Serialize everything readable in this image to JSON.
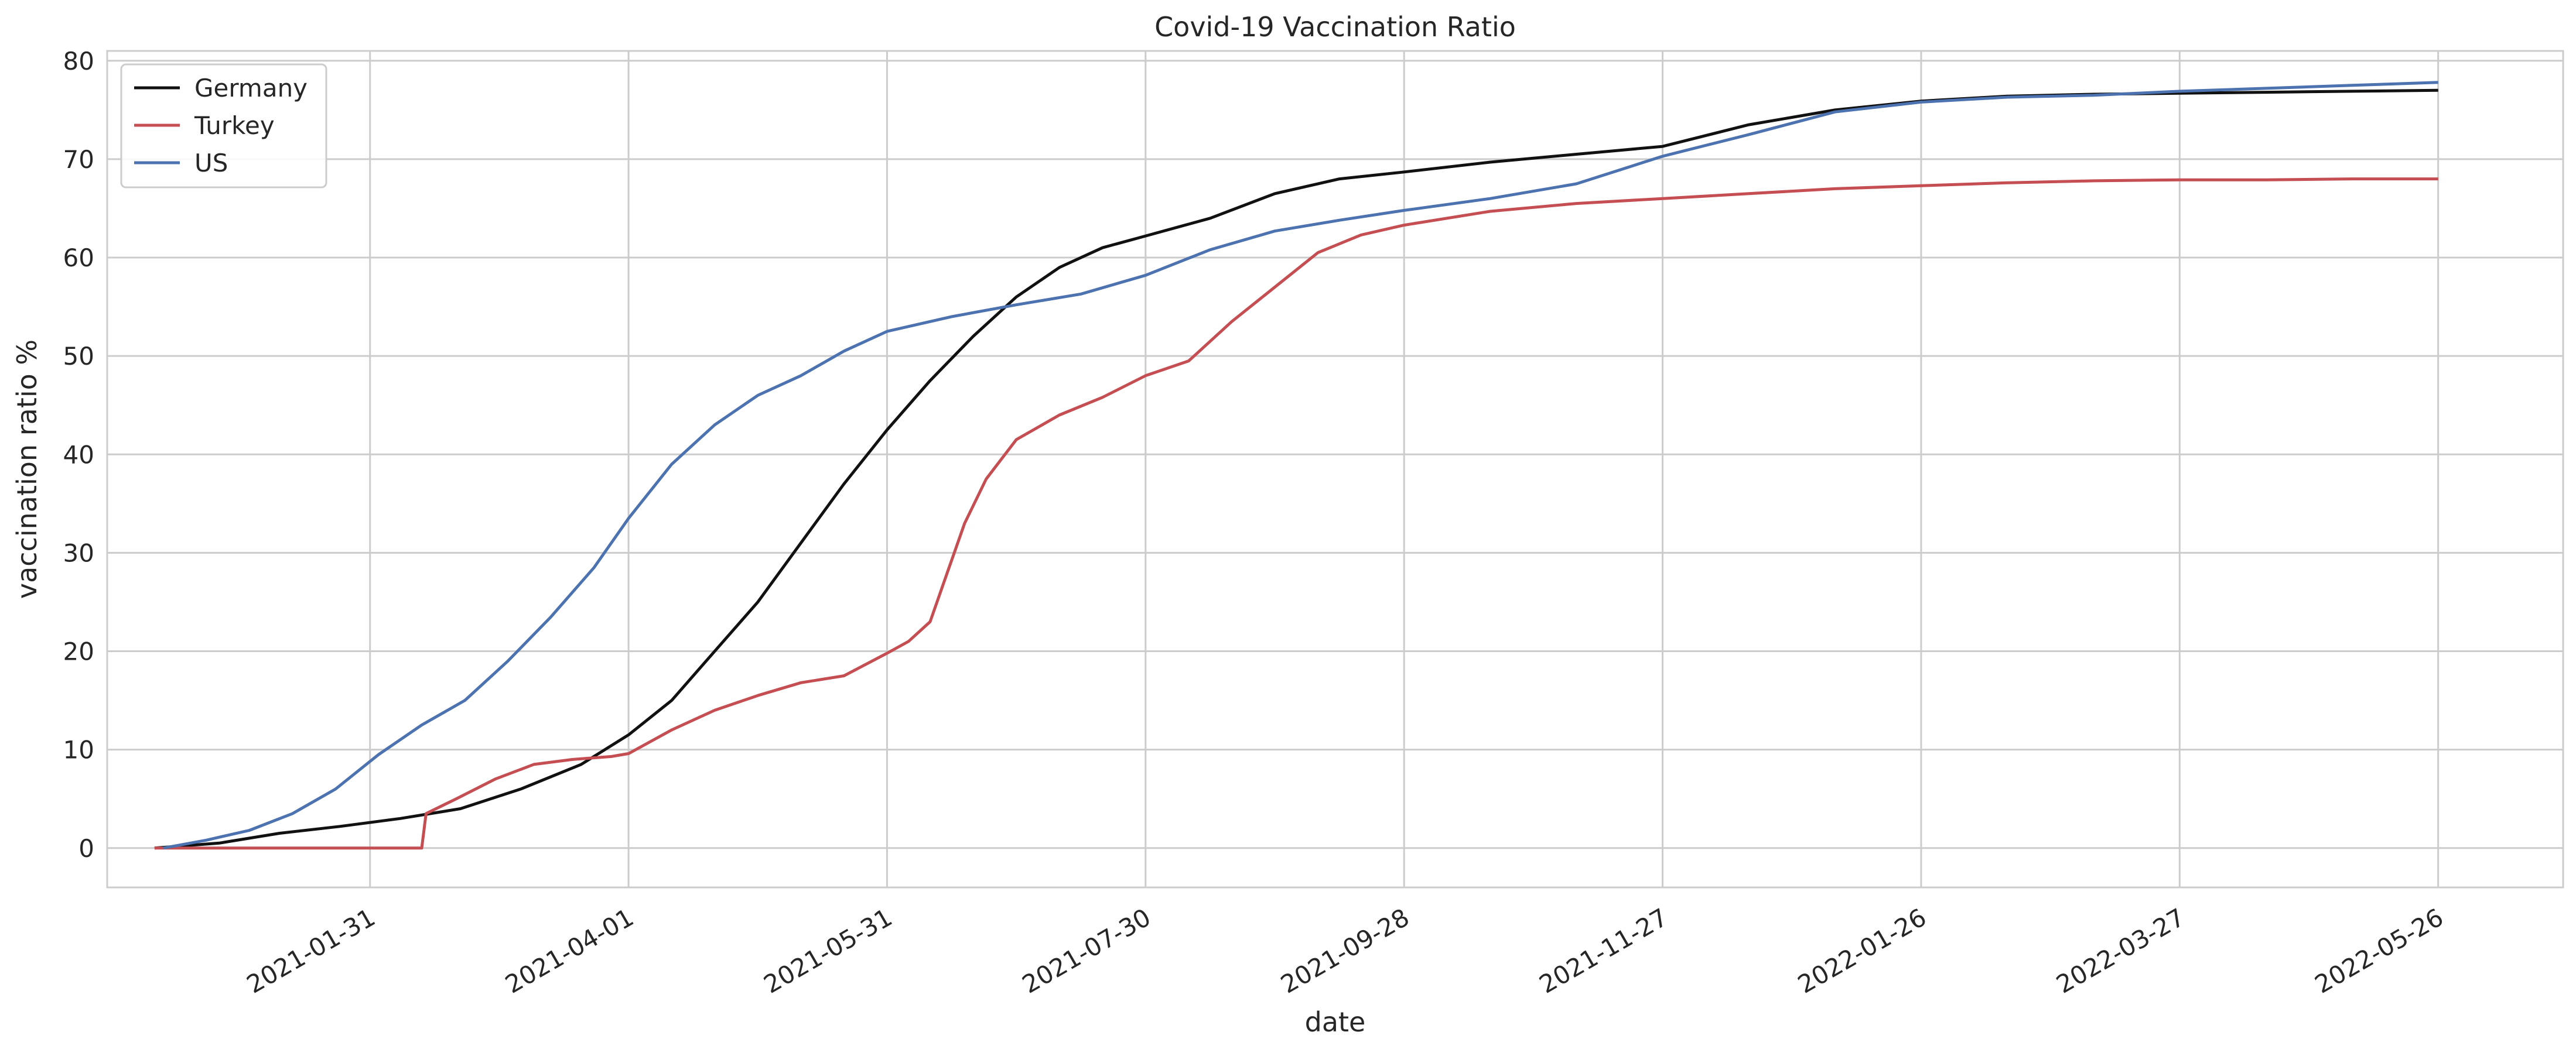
{
  "chart_data": {
    "type": "line",
    "title": "Covid-19 Vaccination Ratio",
    "xlabel": "date",
    "ylabel": "vaccination ratio %",
    "ylim": [
      -4,
      81
    ],
    "yticks": [
      0,
      10,
      20,
      30,
      40,
      50,
      60,
      70,
      80
    ],
    "xlim": [
      "2020-12-01",
      "2022-06-24"
    ],
    "xticks": [
      "2021-01-31",
      "2021-04-01",
      "2021-05-31",
      "2021-07-30",
      "2021-09-28",
      "2021-11-27",
      "2022-01-26",
      "2022-03-27",
      "2022-05-26"
    ],
    "xtick_labels": [
      "2021-01-31",
      "2021-04-01",
      "2021-05-31",
      "2021-07-30",
      "2021-09-28",
      "2021-11-27",
      "2022-01-26",
      "2022-03-27",
      "2022-05-26"
    ],
    "grid": true,
    "legend_position": "top-left",
    "series": [
      {
        "name": "Germany",
        "color": "#111111",
        "x": [
          "2020-12-12",
          "2020-12-27",
          "2021-01-10",
          "2021-01-24",
          "2021-02-07",
          "2021-02-21",
          "2021-03-07",
          "2021-03-21",
          "2021-04-01",
          "2021-04-11",
          "2021-04-21",
          "2021-05-01",
          "2021-05-11",
          "2021-05-21",
          "2021-05-31",
          "2021-06-10",
          "2021-06-20",
          "2021-06-30",
          "2021-07-10",
          "2021-07-20",
          "2021-07-30",
          "2021-08-14",
          "2021-08-29",
          "2021-09-13",
          "2021-09-28",
          "2021-10-18",
          "2021-11-07",
          "2021-11-27",
          "2021-12-17",
          "2022-01-06",
          "2022-01-26",
          "2022-02-15",
          "2022-03-07",
          "2022-03-27",
          "2022-04-16",
          "2022-05-06",
          "2022-05-26"
        ],
        "y": [
          0,
          0.5,
          1.5,
          2.2,
          3,
          4,
          6,
          8.5,
          11.5,
          15,
          20,
          25,
          31,
          37,
          42.5,
          47.5,
          52,
          56,
          59,
          61,
          62.2,
          64,
          66.5,
          68,
          68.7,
          69.7,
          70.5,
          71.3,
          73.5,
          75,
          75.9,
          76.4,
          76.6,
          76.7,
          76.8,
          76.9,
          77
        ]
      },
      {
        "name": "Turkey",
        "color": "#c44e52",
        "x": [
          "2020-12-12",
          "2021-02-12",
          "2021-02-13",
          "2021-02-20",
          "2021-03-01",
          "2021-03-10",
          "2021-03-19",
          "2021-03-28",
          "2021-04-01",
          "2021-04-11",
          "2021-04-21",
          "2021-05-01",
          "2021-05-11",
          "2021-05-21",
          "2021-05-31",
          "2021-06-05",
          "2021-06-10",
          "2021-06-14",
          "2021-06-18",
          "2021-06-23",
          "2021-06-30",
          "2021-07-10",
          "2021-07-20",
          "2021-07-30",
          "2021-08-09",
          "2021-08-19",
          "2021-08-29",
          "2021-09-08",
          "2021-09-18",
          "2021-09-28",
          "2021-10-18",
          "2021-11-07",
          "2021-11-27",
          "2021-12-17",
          "2022-01-06",
          "2022-01-26",
          "2022-02-15",
          "2022-03-07",
          "2022-03-27",
          "2022-04-16",
          "2022-05-06",
          "2022-05-26"
        ],
        "y": [
          0,
          0,
          3.5,
          5,
          7,
          8.5,
          9,
          9.3,
          9.6,
          12,
          14,
          15.5,
          16.8,
          17.5,
          19.8,
          21,
          23,
          28,
          33,
          37.5,
          41.5,
          44,
          45.8,
          48,
          49.5,
          53.5,
          57,
          60.5,
          62.3,
          63.3,
          64.7,
          65.5,
          66,
          66.5,
          67,
          67.3,
          67.6,
          67.8,
          67.9,
          67.9,
          68,
          68
        ]
      },
      {
        "name": "US",
        "color": "#4c72b0",
        "x": [
          "2020-12-14",
          "2020-12-24",
          "2021-01-03",
          "2021-01-13",
          "2021-01-23",
          "2021-02-02",
          "2021-02-12",
          "2021-02-22",
          "2021-03-04",
          "2021-03-14",
          "2021-03-24",
          "2021-04-01",
          "2021-04-11",
          "2021-04-21",
          "2021-05-01",
          "2021-05-11",
          "2021-05-21",
          "2021-05-31",
          "2021-06-15",
          "2021-06-30",
          "2021-07-15",
          "2021-07-30",
          "2021-08-14",
          "2021-08-29",
          "2021-09-13",
          "2021-09-28",
          "2021-10-18",
          "2021-11-07",
          "2021-11-27",
          "2021-12-17",
          "2022-01-06",
          "2022-01-26",
          "2022-02-15",
          "2022-03-07",
          "2022-03-27",
          "2022-04-16",
          "2022-05-06",
          "2022-05-26"
        ],
        "y": [
          0,
          0.8,
          1.8,
          3.5,
          6,
          9.5,
          12.5,
          15,
          19,
          23.5,
          28.5,
          33.5,
          39,
          43,
          46,
          48,
          50.5,
          52.5,
          54,
          55.2,
          56.3,
          58.2,
          60.8,
          62.7,
          63.8,
          64.8,
          66,
          67.5,
          70.3,
          72.5,
          74.8,
          75.8,
          76.3,
          76.5,
          76.9,
          77.2,
          77.5,
          77.8
        ]
      }
    ]
  }
}
